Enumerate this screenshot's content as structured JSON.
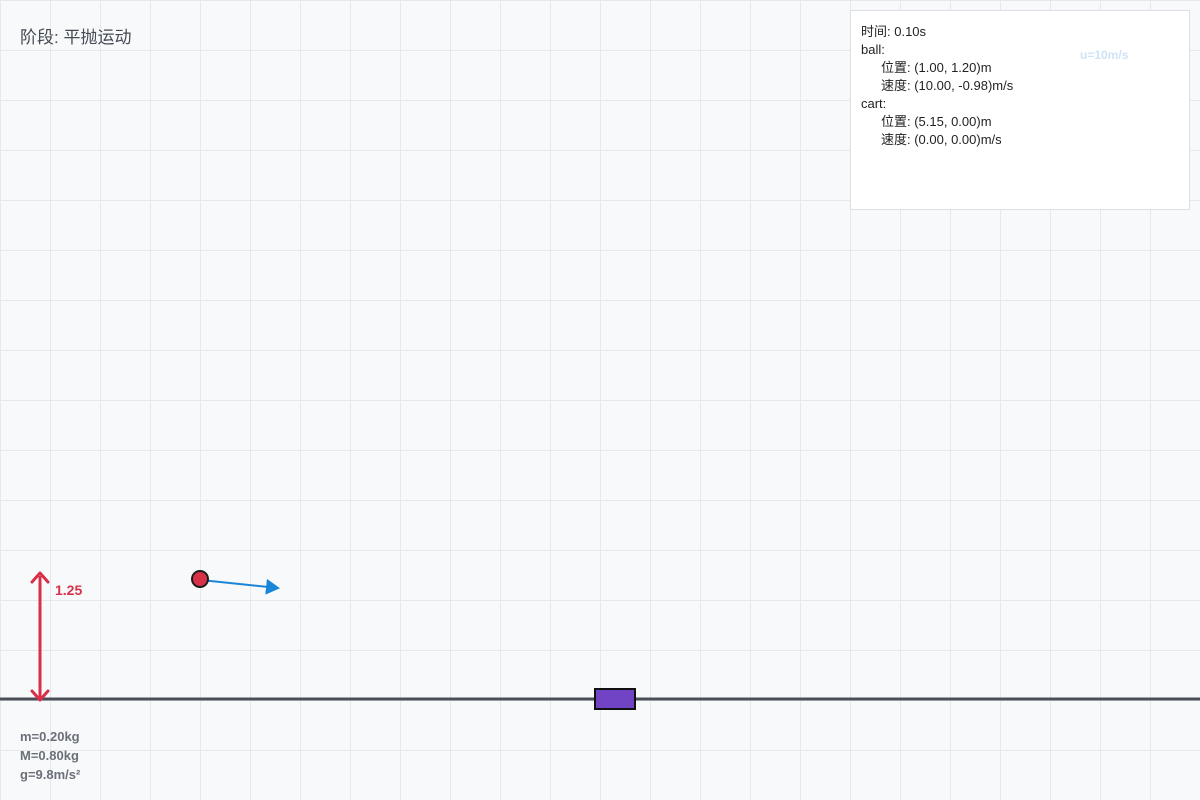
{
  "stage": {
    "title": "阶段: 平抛运动"
  },
  "info": {
    "time": "时间: 0.10s",
    "ball_label": "ball:",
    "ball_position": "位置: (1.00, 1.20)m",
    "ball_velocity": "速度: (10.00, -0.98)m/s",
    "cart_label": "cart:",
    "cart_position": "位置: (5.15, 0.00)m",
    "cart_velocity": "速度: (0.00, 0.00)m/s"
  },
  "cart_speed_label": "u=10m/s",
  "height_marker": {
    "label": "1.25"
  },
  "params": {
    "m": "m=0.20kg",
    "M": "M=0.80kg",
    "g": "g=9.8m/s²"
  },
  "colors": {
    "ball_fill": "#d9304a",
    "velocity_arrow": "#1a86d9",
    "cart_fill": "#7044c4",
    "ground": "#4a4f57",
    "height_arrow": "#d9304a"
  }
}
